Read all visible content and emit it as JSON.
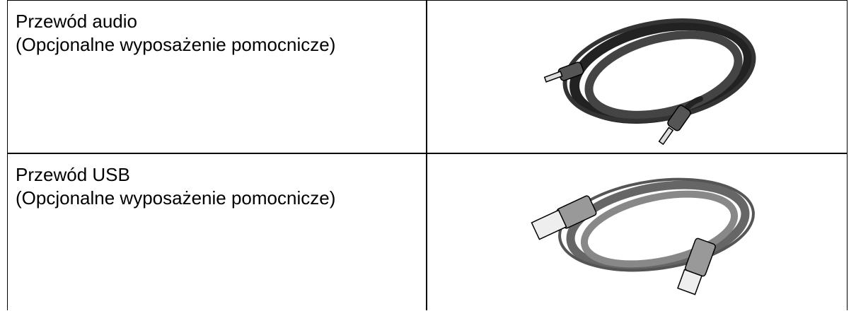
{
  "table": {
    "rows": [
      {
        "name": "Przewód audio",
        "note": "(Opcjonalne wyposażenie pomocnicze)"
      },
      {
        "name": "Przewód USB",
        "note": "(Opcjonalne wyposażenie pomocnicze)"
      }
    ]
  }
}
